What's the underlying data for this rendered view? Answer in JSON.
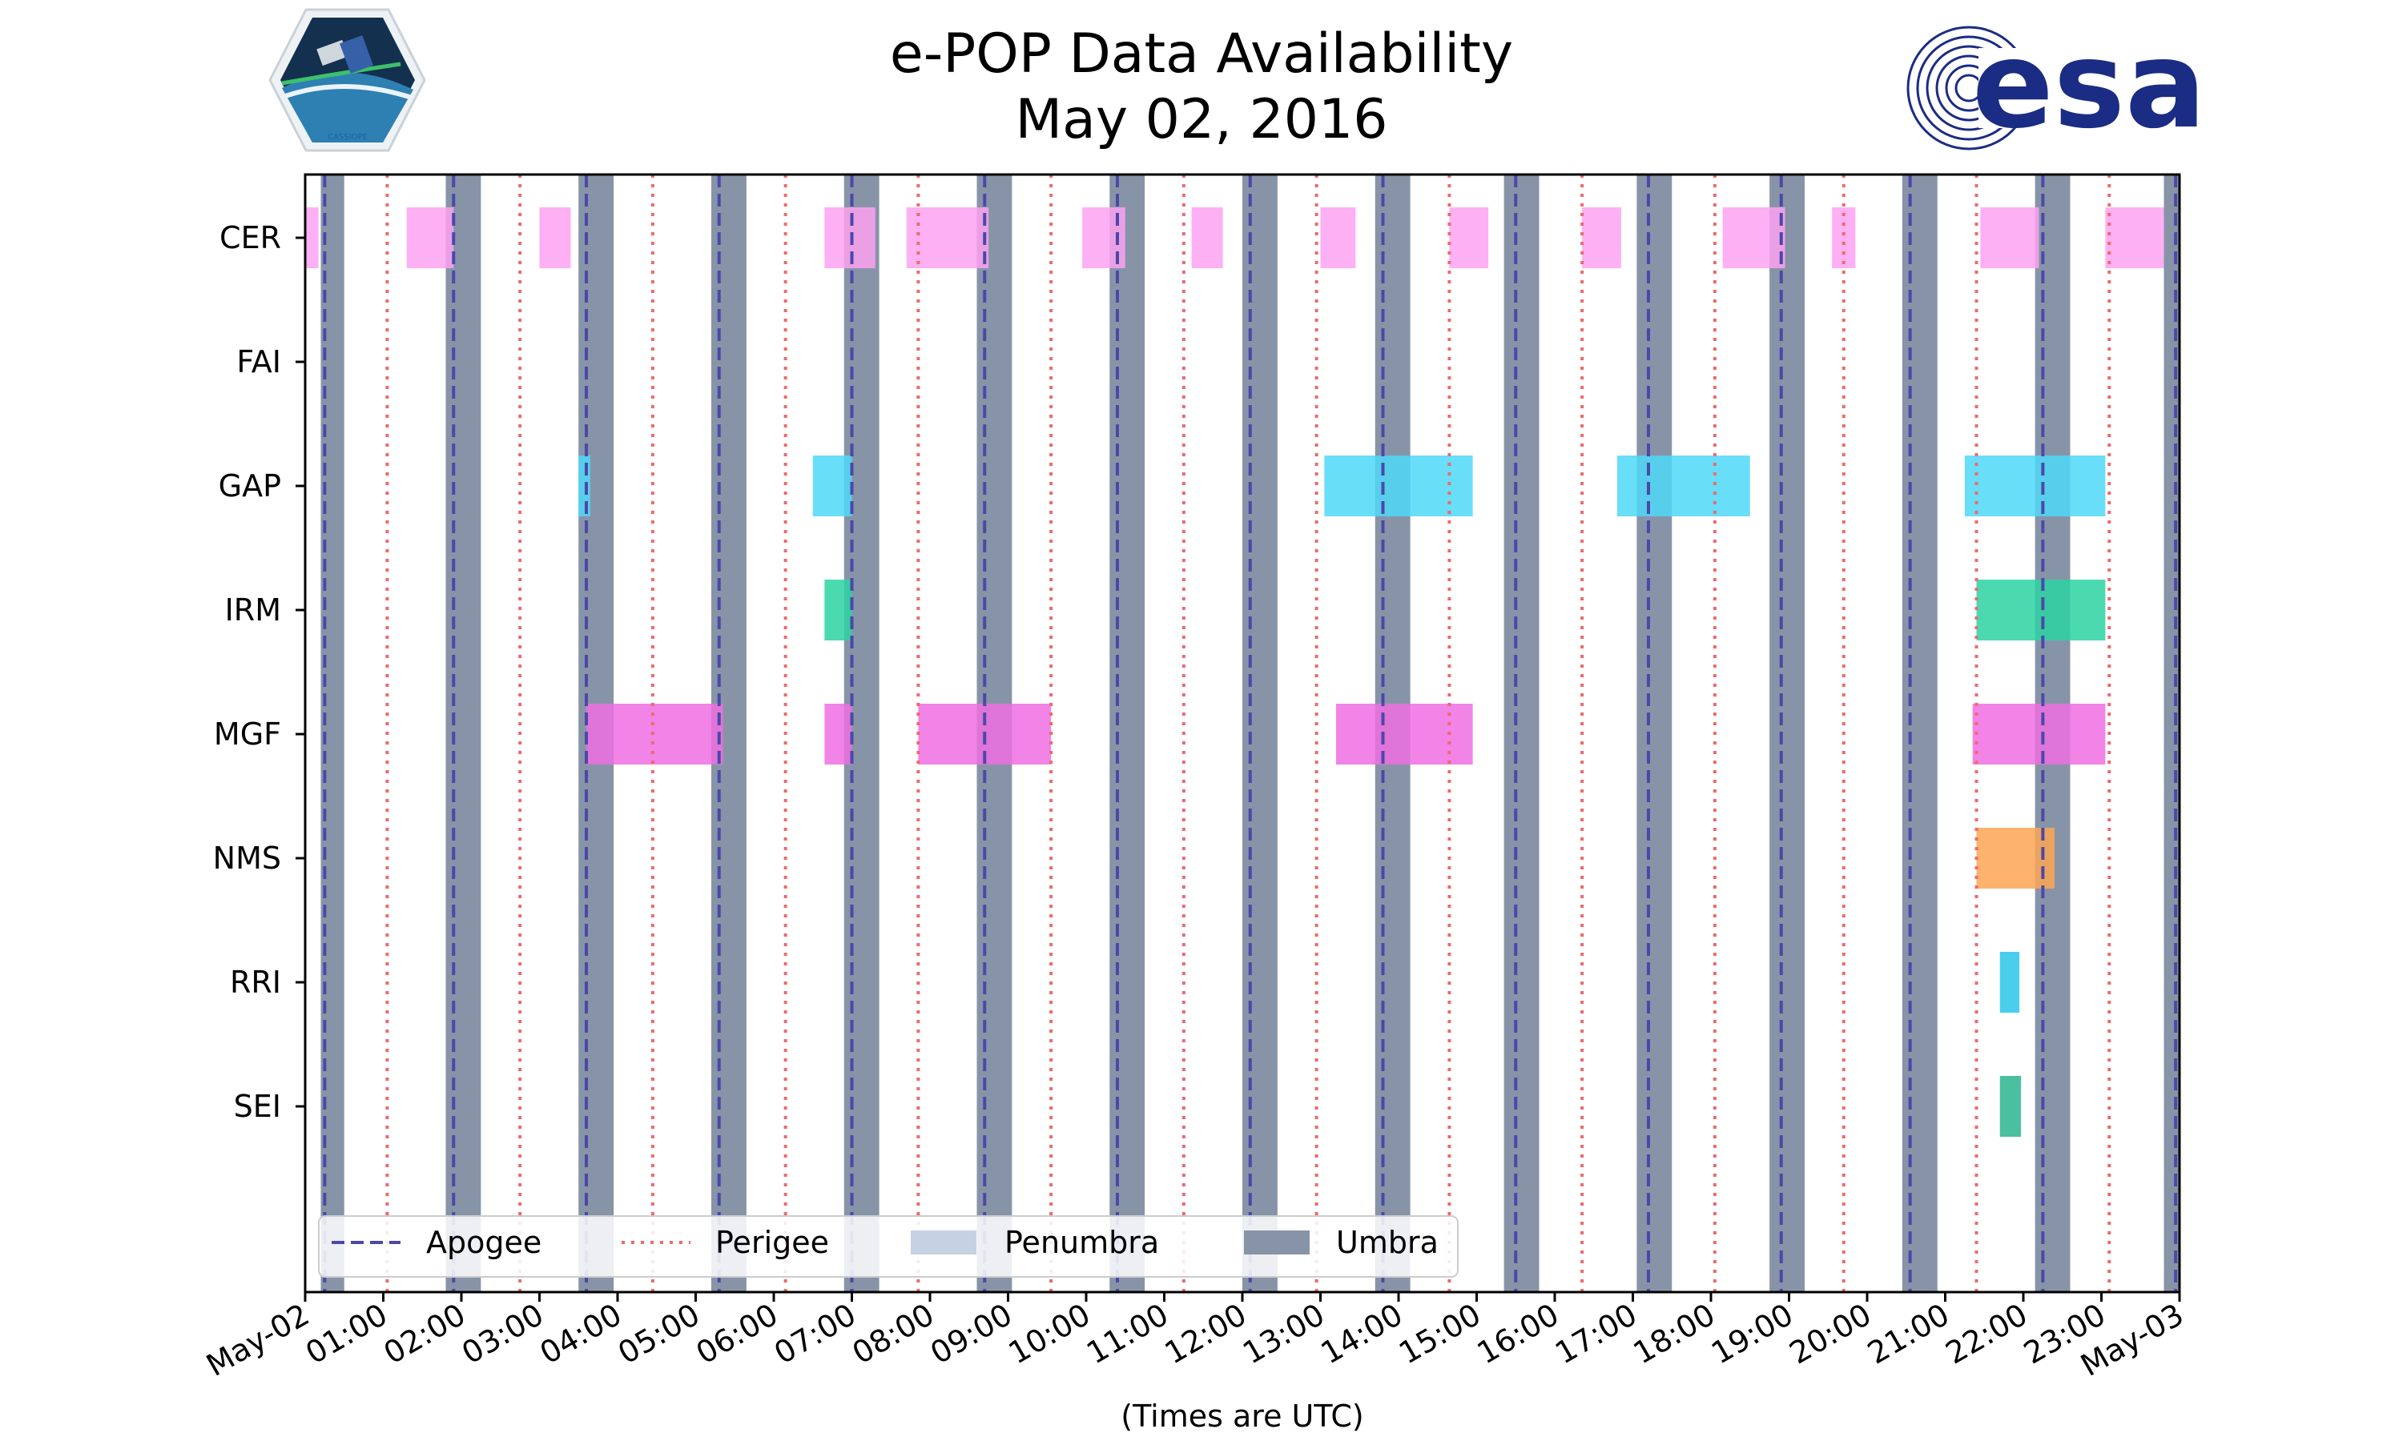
{
  "title_line1": "e-POP Data Availability",
  "title_line2": "May 02, 2016",
  "logos": {
    "left_text": "CASSIOPE",
    "right_text": "esa"
  },
  "colors": {
    "umbra": "#8794a8",
    "penumbra": "#c4d2e4",
    "apogee": "#4b48a8",
    "perigee": "#ee6a6a",
    "CER": "#fda2f1",
    "GAP": "#4fd8f8",
    "IRM": "#2bd3a2",
    "MGF": "#ee6ee2",
    "NMS": "#fda654",
    "RRI": "#2ac5e8",
    "SEI": "#2ab590",
    "esa_blue": "#1b2c84"
  },
  "chart_data": {
    "type": "timeline",
    "title": "e-POP Data Availability\nMay 02, 2016",
    "xlabel": "(Times are UTC)",
    "xlim_hours": [
      0,
      24
    ],
    "x_tick_labels": [
      "May-02",
      "01:00",
      "02:00",
      "03:00",
      "04:00",
      "05:00",
      "06:00",
      "07:00",
      "08:00",
      "09:00",
      "10:00",
      "11:00",
      "12:00",
      "13:00",
      "14:00",
      "15:00",
      "16:00",
      "17:00",
      "18:00",
      "19:00",
      "20:00",
      "21:00",
      "22:00",
      "23:00",
      "May-03"
    ],
    "instruments": [
      "CER",
      "FAI",
      "GAP",
      "IRM",
      "MGF",
      "NMS",
      "RRI",
      "SEI"
    ],
    "intervals_hours": {
      "CER": [
        [
          0.0,
          0.17
        ],
        [
          1.3,
          1.9
        ],
        [
          3.0,
          3.4
        ],
        [
          6.65,
          7.3
        ],
        [
          7.7,
          8.75
        ],
        [
          9.95,
          10.5
        ],
        [
          11.35,
          11.75
        ],
        [
          13.0,
          13.45
        ],
        [
          14.65,
          15.15
        ],
        [
          16.35,
          16.85
        ],
        [
          18.15,
          18.95
        ],
        [
          19.55,
          19.85
        ],
        [
          21.45,
          22.2
        ],
        [
          23.05,
          23.8
        ]
      ],
      "FAI": [],
      "GAP": [
        [
          3.5,
          3.65
        ],
        [
          6.5,
          7.0
        ],
        [
          13.05,
          14.95
        ],
        [
          16.8,
          18.5
        ],
        [
          21.25,
          23.05
        ]
      ],
      "IRM": [
        [
          6.65,
          7.0
        ],
        [
          21.4,
          23.05
        ]
      ],
      "MGF": [
        [
          3.6,
          5.35
        ],
        [
          6.65,
          7.0
        ],
        [
          7.85,
          9.55
        ],
        [
          13.2,
          14.95
        ],
        [
          21.35,
          23.05
        ]
      ],
      "NMS": [
        [
          21.4,
          22.4
        ]
      ],
      "RRI": [
        [
          21.7,
          21.95
        ]
      ],
      "SEI": [
        [
          21.7,
          21.97
        ]
      ]
    },
    "umbra_hours": [
      [
        0.2,
        0.5
      ],
      [
        1.8,
        2.25
      ],
      [
        3.5,
        3.95
      ],
      [
        5.2,
        5.65
      ],
      [
        6.9,
        7.35
      ],
      [
        8.6,
        9.05
      ],
      [
        10.3,
        10.75
      ],
      [
        12.0,
        12.45
      ],
      [
        13.7,
        14.15
      ],
      [
        15.35,
        15.8
      ],
      [
        17.05,
        17.5
      ],
      [
        18.75,
        19.2
      ],
      [
        20.45,
        20.9
      ],
      [
        22.15,
        22.6
      ],
      [
        23.8,
        24.0
      ]
    ],
    "apogee_hours": [
      0.25,
      1.9,
      3.6,
      5.3,
      7.0,
      8.7,
      10.4,
      12.1,
      13.8,
      15.5,
      17.2,
      18.9,
      20.55,
      22.25,
      23.95
    ],
    "perigee_hours": [
      1.05,
      2.75,
      4.45,
      6.15,
      7.85,
      9.55,
      11.25,
      12.95,
      14.65,
      16.35,
      18.05,
      19.7,
      21.4,
      23.1
    ],
    "legend": [
      "Apogee",
      "Perigee",
      "Penumbra",
      "Umbra"
    ],
    "legend_position": "lower-left",
    "grid": false
  }
}
